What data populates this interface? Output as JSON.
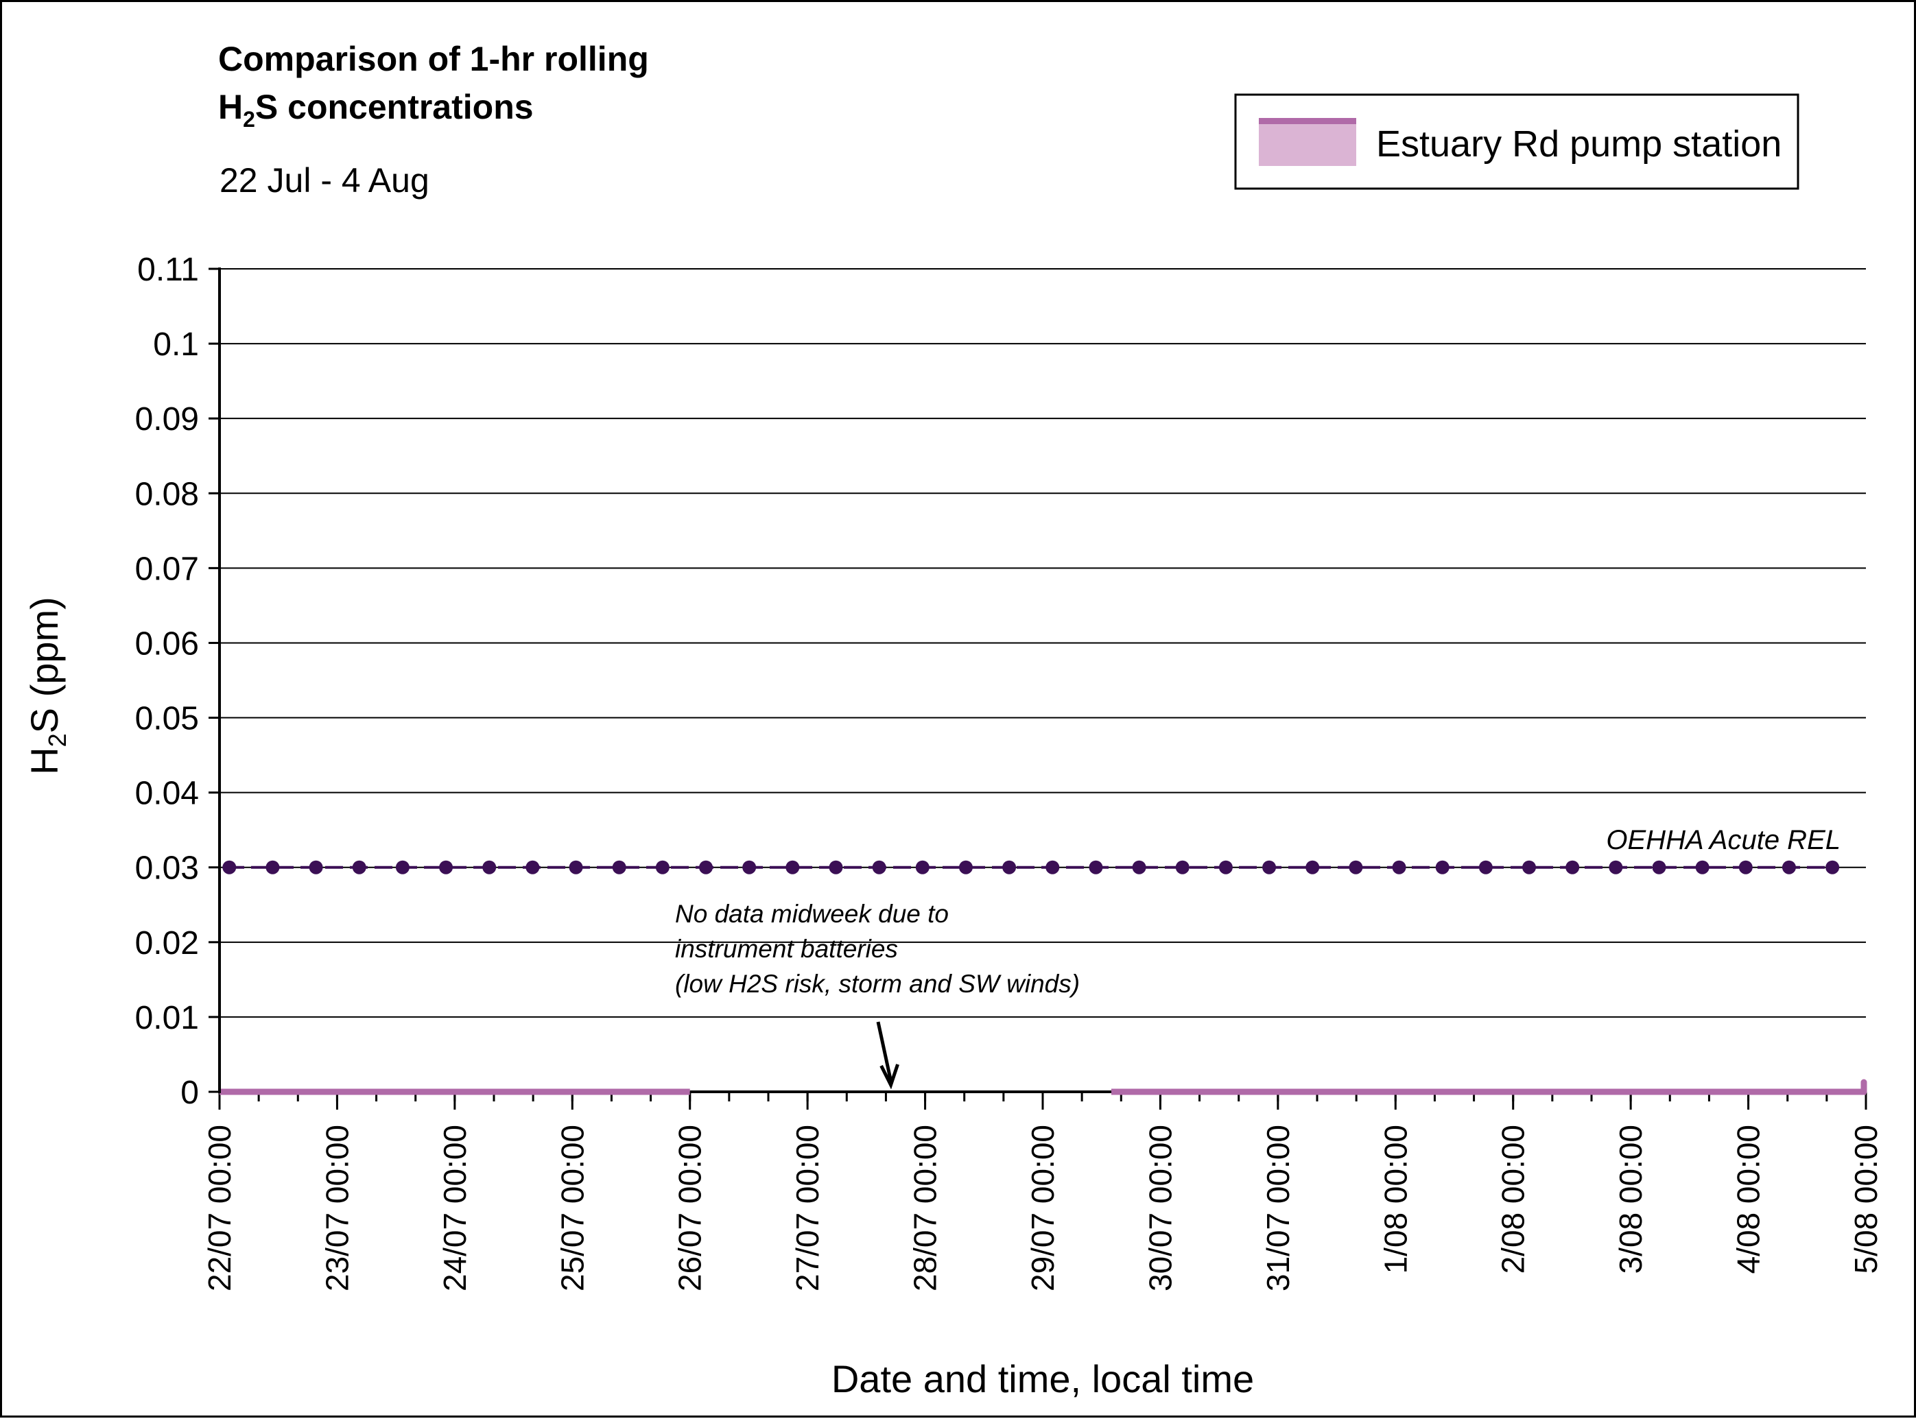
{
  "chart_data": {
    "type": "line",
    "title_line1": "Comparison of 1-hr rolling",
    "title_line2_main": "H",
    "title_line2_sub": "2",
    "title_line2_rest": "S concentrations",
    "subtitle": "22 Jul - 4 Aug",
    "xlabel": "Date and time, local time",
    "ylabel_main": "H",
    "ylabel_sub": "2",
    "ylabel_rest": "S (ppm)",
    "ylim": [
      0,
      0.11
    ],
    "y_ticks": [
      "0",
      "0.01",
      "0.02",
      "0.03",
      "0.04",
      "0.05",
      "0.06",
      "0.07",
      "0.08",
      "0.09",
      "0.1",
      "0.11"
    ],
    "y_tick_values": [
      0,
      0.01,
      0.02,
      0.03,
      0.04,
      0.05,
      0.06,
      0.07,
      0.08,
      0.09,
      0.1,
      0.11
    ],
    "x_range_days": [
      0,
      14
    ],
    "x_ticks": [
      "22/07 00:00",
      "23/07 00:00",
      "24/07 00:00",
      "25/07 00:00",
      "26/07 00:00",
      "27/07 00:00",
      "28/07 00:00",
      "29/07 00:00",
      "30/07 00:00",
      "31/07 00:00",
      "1/08 00:00",
      "2/08 00:00",
      "3/08 00:00",
      "4/08 00:00",
      "5/08 00:00"
    ],
    "grid": true,
    "legend_position": "top-right",
    "colors": {
      "series": "#b06aa8",
      "series_fill": "#dbb4d4",
      "reference": "#3b0f55",
      "gap": "#000000"
    },
    "series": [
      {
        "name": "Estuary Rd pump station",
        "segments": [
          {
            "x_start": "22/07 00:00",
            "x_end": "26/07 00:00",
            "value": 0
          },
          {
            "x_start": "29/07 14:00",
            "x_end": "5/08 00:00",
            "value": 0
          }
        ],
        "final_point": {
          "x": "5/08 00:00",
          "value": 0.0005
        }
      }
    ],
    "reference_line": {
      "label": "OEHHA Acute REL",
      "value": 0.03
    },
    "annotation": {
      "lines": [
        "No data midweek due to",
        "instrument batteries",
        "(low H2S risk, storm and SW winds)"
      ],
      "arrow_target": {
        "x": "27/07 17:00",
        "value": 0
      }
    }
  }
}
